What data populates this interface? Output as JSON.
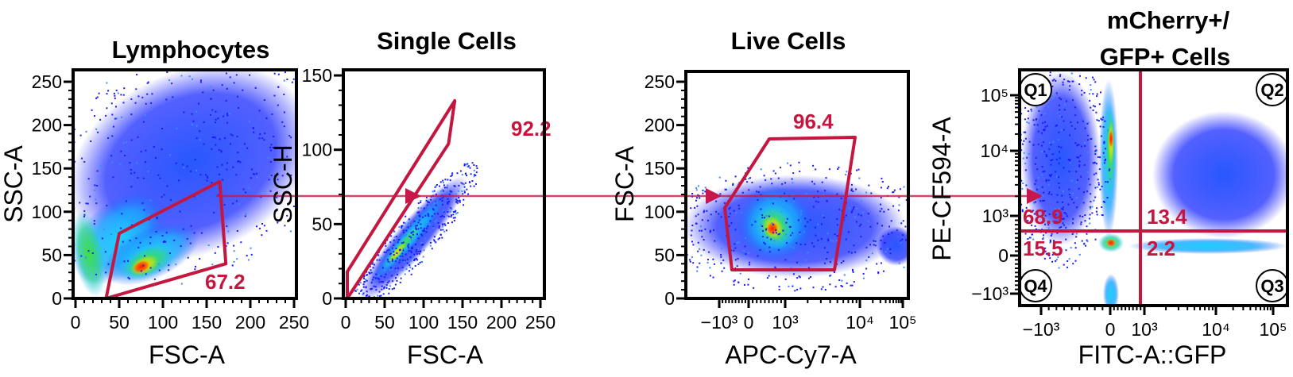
{
  "chart_data": [
    {
      "type": "scatter",
      "title": "Lymphocytes",
      "xlabel": "FSC-A",
      "ylabel": "SSC-A",
      "xlim": [
        0,
        260
      ],
      "ylim": [
        0,
        260
      ],
      "xticks": [
        "0",
        "50",
        "100",
        "150",
        "200",
        "250"
      ],
      "yticks": [
        "0",
        "50",
        "100",
        "150",
        "200",
        "250"
      ],
      "gate": {
        "type": "polygon",
        "vertices": [
          [
            35,
            0
          ],
          [
            50,
            75
          ],
          [
            165,
            135
          ],
          [
            172,
            40
          ]
        ],
        "percent": "67.2"
      },
      "density_peak": [
        80,
        35
      ]
    },
    {
      "type": "scatter",
      "title": "Single Cells",
      "xlabel": "FSC-A",
      "ylabel": "SSC-H",
      "xlim": [
        0,
        260
      ],
      "ylim": [
        0,
        150
      ],
      "xticks": [
        "0",
        "50",
        "100",
        "150",
        "200",
        "250"
      ],
      "yticks": [
        "0",
        "50",
        "100",
        "150"
      ],
      "gate": {
        "type": "polygon",
        "vertices": [
          [
            2,
            0
          ],
          [
            2,
            18
          ],
          [
            140,
            133
          ],
          [
            132,
            104
          ]
        ],
        "percent": "92.2"
      },
      "density_peak": [
        65,
        62
      ]
    },
    {
      "type": "scatter",
      "title": "Live Cells",
      "xlabel": "APC-Cy7-A",
      "ylabel": "FSC-A",
      "ylim": [
        0,
        260
      ],
      "x_scale": "biexponential",
      "xticks": [
        "−10³",
        "0",
        "10³",
        "10⁴",
        "10⁵"
      ],
      "yticks": [
        "0",
        "50",
        "100",
        "150",
        "200",
        "250"
      ],
      "gate": {
        "type": "polygon",
        "percent": "96.4"
      },
      "density_peak": [
        "~500",
        85
      ]
    },
    {
      "type": "scatter",
      "title": [
        "mCherry+/",
        "GFP+ Cells"
      ],
      "xlabel": "FITC-A::GFP",
      "ylabel": "PE-CF594-A",
      "x_scale": "biexponential",
      "y_scale": "biexponential",
      "xticks": [
        "−10³",
        "0",
        "10³",
        "10⁴",
        "10⁵"
      ],
      "yticks": [
        "−10³",
        "0",
        "10³",
        "10⁴",
        "10⁵"
      ],
      "quadrants": [
        {
          "name": "Q1",
          "percent": "68.9"
        },
        {
          "name": "Q2",
          "percent": "13.4"
        },
        {
          "name": "Q3",
          "percent": "2.2"
        },
        {
          "name": "Q4",
          "percent": "15.5"
        }
      ]
    }
  ],
  "colors": {
    "gate": "#c4173f",
    "arrow": "#c8174a",
    "density_low": "#1a1aff",
    "density_high": "#ff1a00",
    "frame": "#000000"
  }
}
